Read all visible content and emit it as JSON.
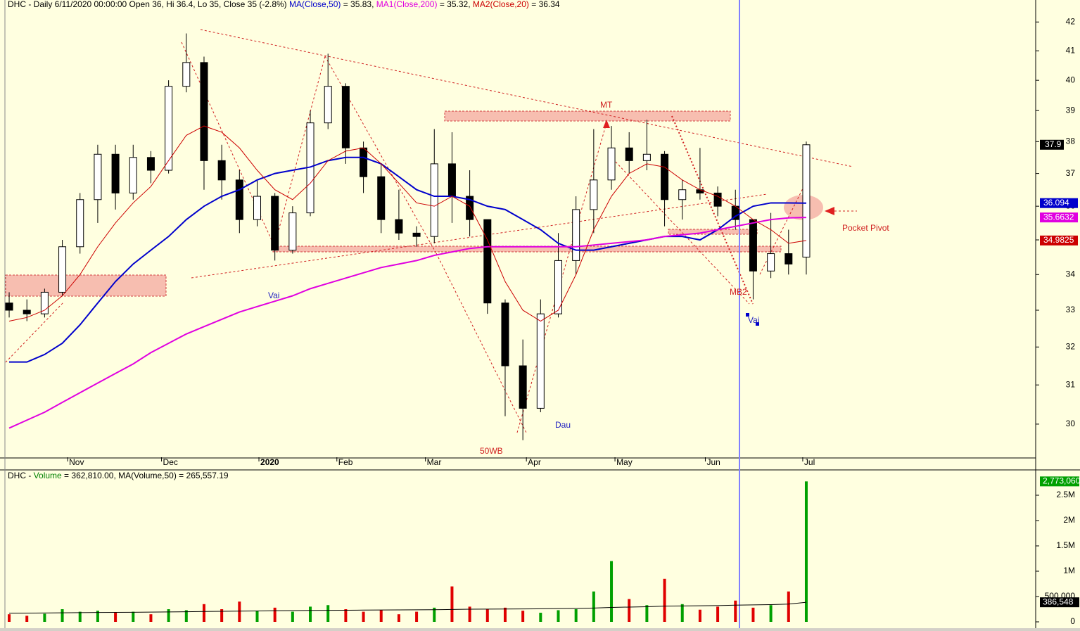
{
  "chart_data": [
    {
      "type": "candlestick",
      "title": "DHC - Daily 6/11/2020 00:00:00 Open 36, Hi 36.4, Lo 35, Close 35 (-2.8%)",
      "open": [
        33.2,
        33.0,
        32.9,
        33.5,
        34.8,
        36.2,
        37.6,
        36.4,
        37.5,
        37.1,
        39.8,
        40.6,
        37.4,
        36.8,
        35.6,
        36.3,
        34.7,
        35.8,
        38.6,
        39.8,
        37.8,
        36.9,
        35.6,
        35.2,
        35.1,
        37.3,
        36.3,
        35.6,
        33.2,
        31.5,
        30.4,
        32.9,
        34.4,
        35.9,
        36.8,
        37.8,
        37.4,
        37.6,
        36.2,
        36.5,
        36.4,
        36.0,
        35.6,
        34.1,
        34.6,
        34.5
      ],
      "high": [
        33.5,
        33.3,
        33.6,
        35.0,
        36.4,
        37.9,
        37.9,
        37.9,
        37.7,
        40.0,
        41.6,
        40.8,
        37.9,
        37.1,
        36.8,
        36.4,
        36.0,
        39.0,
        40.9,
        39.9,
        38.0,
        37.3,
        36.5,
        35.4,
        38.4,
        38.3,
        37.1,
        35.6,
        33.3,
        32.2,
        33.3,
        35.2,
        36.3,
        38.4,
        38.5,
        38.3,
        38.7,
        37.7,
        36.8,
        37.8,
        36.6,
        36.5,
        35.6,
        35.8,
        35.3,
        38.0
      ],
      "low": [
        32.8,
        32.7,
        32.8,
        33.4,
        34.6,
        35.5,
        35.9,
        36.2,
        36.7,
        37.0,
        39.6,
        36.5,
        36.2,
        35.2,
        35.4,
        34.4,
        34.6,
        35.7,
        38.4,
        37.3,
        36.4,
        35.2,
        35.0,
        34.8,
        34.9,
        35.5,
        35.1,
        32.9,
        30.2,
        29.6,
        30.3,
        32.8,
        34.0,
        35.2,
        36.5,
        37.0,
        37.1,
        35.4,
        35.6,
        36.2,
        35.7,
        35.3,
        33.3,
        33.9,
        34.0,
        34.0
      ],
      "close": [
        33.0,
        32.9,
        33.5,
        34.8,
        36.2,
        37.6,
        36.4,
        37.5,
        37.1,
        39.8,
        40.6,
        37.4,
        36.8,
        35.6,
        36.3,
        34.7,
        35.8,
        38.6,
        39.8,
        37.8,
        36.9,
        35.6,
        35.2,
        35.1,
        37.3,
        36.3,
        35.6,
        33.2,
        31.5,
        30.4,
        32.9,
        34.4,
        35.9,
        36.8,
        37.8,
        37.4,
        37.6,
        36.2,
        36.5,
        36.4,
        36.0,
        35.6,
        34.1,
        34.6,
        34.3,
        37.9
      ],
      "up_color": "#ffffff",
      "down_color": "#000000",
      "series": [
        {
          "name": "MA(Close,50)",
          "header_value": "= 35.83",
          "color": "#0000cc",
          "values": [
            31.6,
            31.6,
            31.8,
            32.1,
            32.6,
            33.2,
            33.8,
            34.3,
            34.7,
            35.1,
            35.6,
            36.0,
            36.3,
            36.5,
            36.8,
            37.0,
            37.1,
            37.2,
            37.4,
            37.5,
            37.5,
            37.3,
            36.9,
            36.5,
            36.3,
            36.3,
            36.2,
            36.0,
            35.9,
            35.6,
            35.3,
            34.9,
            34.7,
            34.7,
            34.8,
            34.9,
            35.0,
            35.1,
            35.1,
            35.0,
            35.3,
            35.7,
            36.0,
            36.1,
            36.1,
            36.094
          ]
        },
        {
          "name": "MA1(Close,200)",
          "header_value": "= 35.32",
          "color": "#e000e0",
          "values": [
            29.9,
            30.1,
            30.3,
            30.55,
            30.8,
            31.05,
            31.3,
            31.55,
            31.85,
            32.1,
            32.35,
            32.55,
            32.75,
            32.95,
            33.1,
            33.25,
            33.4,
            33.6,
            33.75,
            33.9,
            34.05,
            34.2,
            34.3,
            34.4,
            34.55,
            34.65,
            34.75,
            34.8,
            34.8,
            34.8,
            34.8,
            34.8,
            34.8,
            34.85,
            34.9,
            34.95,
            35.0,
            35.1,
            35.15,
            35.2,
            35.3,
            35.4,
            35.5,
            35.6,
            35.65,
            35.6632
          ]
        },
        {
          "name": "MA2(Close,20)",
          "header_value": "= 36.34",
          "color": "#cc0000",
          "values": [
            32.7,
            32.8,
            33.0,
            33.4,
            34.0,
            34.8,
            35.5,
            36.1,
            36.6,
            37.4,
            38.2,
            38.5,
            38.3,
            37.8,
            37.1,
            36.5,
            36.2,
            36.7,
            37.4,
            37.7,
            37.8,
            37.3,
            36.7,
            36.1,
            36.0,
            36.3,
            36.0,
            35.0,
            33.8,
            33.0,
            32.7,
            33.0,
            34.0,
            35.3,
            36.3,
            37.0,
            37.3,
            37.2,
            36.8,
            36.5,
            36.3,
            36.0,
            35.6,
            35.3,
            34.9,
            34.9825
          ]
        }
      ],
      "xlim": [
        -0.2,
        57.95
      ],
      "xticks": [
        {
          "value": 3.3,
          "label": "Nov"
        },
        {
          "value": 8.6,
          "label": "Dec"
        },
        {
          "value": 14.1,
          "label": "2020"
        },
        {
          "value": 18.5,
          "label": "Feb"
        },
        {
          "value": 23.5,
          "label": "Mar"
        },
        {
          "value": 29.2,
          "label": "Apr"
        },
        {
          "value": 34.2,
          "label": "May"
        },
        {
          "value": 39.3,
          "label": "Jun"
        },
        {
          "value": 44.8,
          "label": "Jul"
        }
      ],
      "ylim": [
        29.18,
        42.78
      ],
      "yticks": [
        30,
        31,
        32,
        33,
        34,
        35,
        36,
        37,
        38,
        39,
        40,
        41,
        42
      ],
      "log_scale": true,
      "annotations": [
        "MT",
        "Vai",
        "Dau",
        "50WB",
        "MB2",
        "Vai",
        "Pocket Pivot"
      ]
    },
    {
      "type": "bar",
      "title": "DHC -",
      "up_color": "#00a000",
      "down_color": "#e00000",
      "series": [
        {
          "name": "Volume",
          "header_value": "= 362,810.00,",
          "color": "#008000",
          "values": [
            150000,
            120000,
            160000,
            250000,
            200000,
            220000,
            180000,
            200000,
            150000,
            250000,
            230000,
            350000,
            250000,
            400000,
            220000,
            280000,
            200000,
            300000,
            330000,
            250000,
            200000,
            230000,
            150000,
            200000,
            280000,
            700000,
            300000,
            250000,
            280000,
            220000,
            180000,
            230000,
            250000,
            600000,
            1200000,
            450000,
            330000,
            850000,
            350000,
            240000,
            300000,
            420000,
            280000,
            330000,
            600000,
            2773060
          ],
          "value_labels": [
            null,
            null,
            null,
            null,
            null,
            null,
            null,
            null,
            null,
            null,
            null,
            null,
            null,
            null,
            null,
            null,
            null,
            null,
            null,
            null,
            null,
            null,
            null,
            null,
            null,
            null,
            null,
            null,
            null,
            null,
            null,
            null,
            null,
            null,
            null,
            null,
            null,
            null,
            null,
            null,
            null,
            null,
            null,
            null,
            null,
            "2,773,060"
          ]
        },
        {
          "name": "MA(Volume,50)",
          "header_value": "= 265,557.19",
          "color": "#000000",
          "values": [
            170000,
            172000,
            175000,
            178000,
            182000,
            185000,
            188000,
            190000,
            193000,
            196000,
            200000,
            204000,
            208000,
            212000,
            216000,
            220000,
            222000,
            225000,
            228000,
            230000,
            232000,
            234000,
            236000,
            238000,
            240000,
            245000,
            250000,
            252000,
            254000,
            256000,
            258000,
            262000,
            266000,
            272000,
            285000,
            292000,
            298000,
            310000,
            315000,
            318000,
            322000,
            330000,
            335000,
            340000,
            350000,
            386548
          ],
          "value_labels": [
            null,
            null,
            null,
            null,
            null,
            null,
            null,
            null,
            null,
            null,
            null,
            null,
            null,
            null,
            null,
            null,
            null,
            null,
            null,
            null,
            null,
            null,
            null,
            null,
            null,
            null,
            null,
            null,
            null,
            null,
            null,
            null,
            null,
            null,
            null,
            null,
            null,
            null,
            null,
            null,
            null,
            null,
            null,
            null,
            null,
            "386,548"
          ]
        }
      ],
      "xlim": [
        -0.2,
        57.95
      ],
      "ylim": [
        -125000,
        3000000
      ],
      "yticks": [
        0,
        {
          "value": 500000,
          "label": "500,000"
        },
        {
          "value": 1000000,
          "label": "1M"
        },
        {
          "value": 1500000,
          "label": "1.5M"
        },
        {
          "value": 2000000,
          "label": "2M"
        },
        {
          "value": 2500000,
          "label": "2.5M"
        }
      ]
    }
  ]
}
